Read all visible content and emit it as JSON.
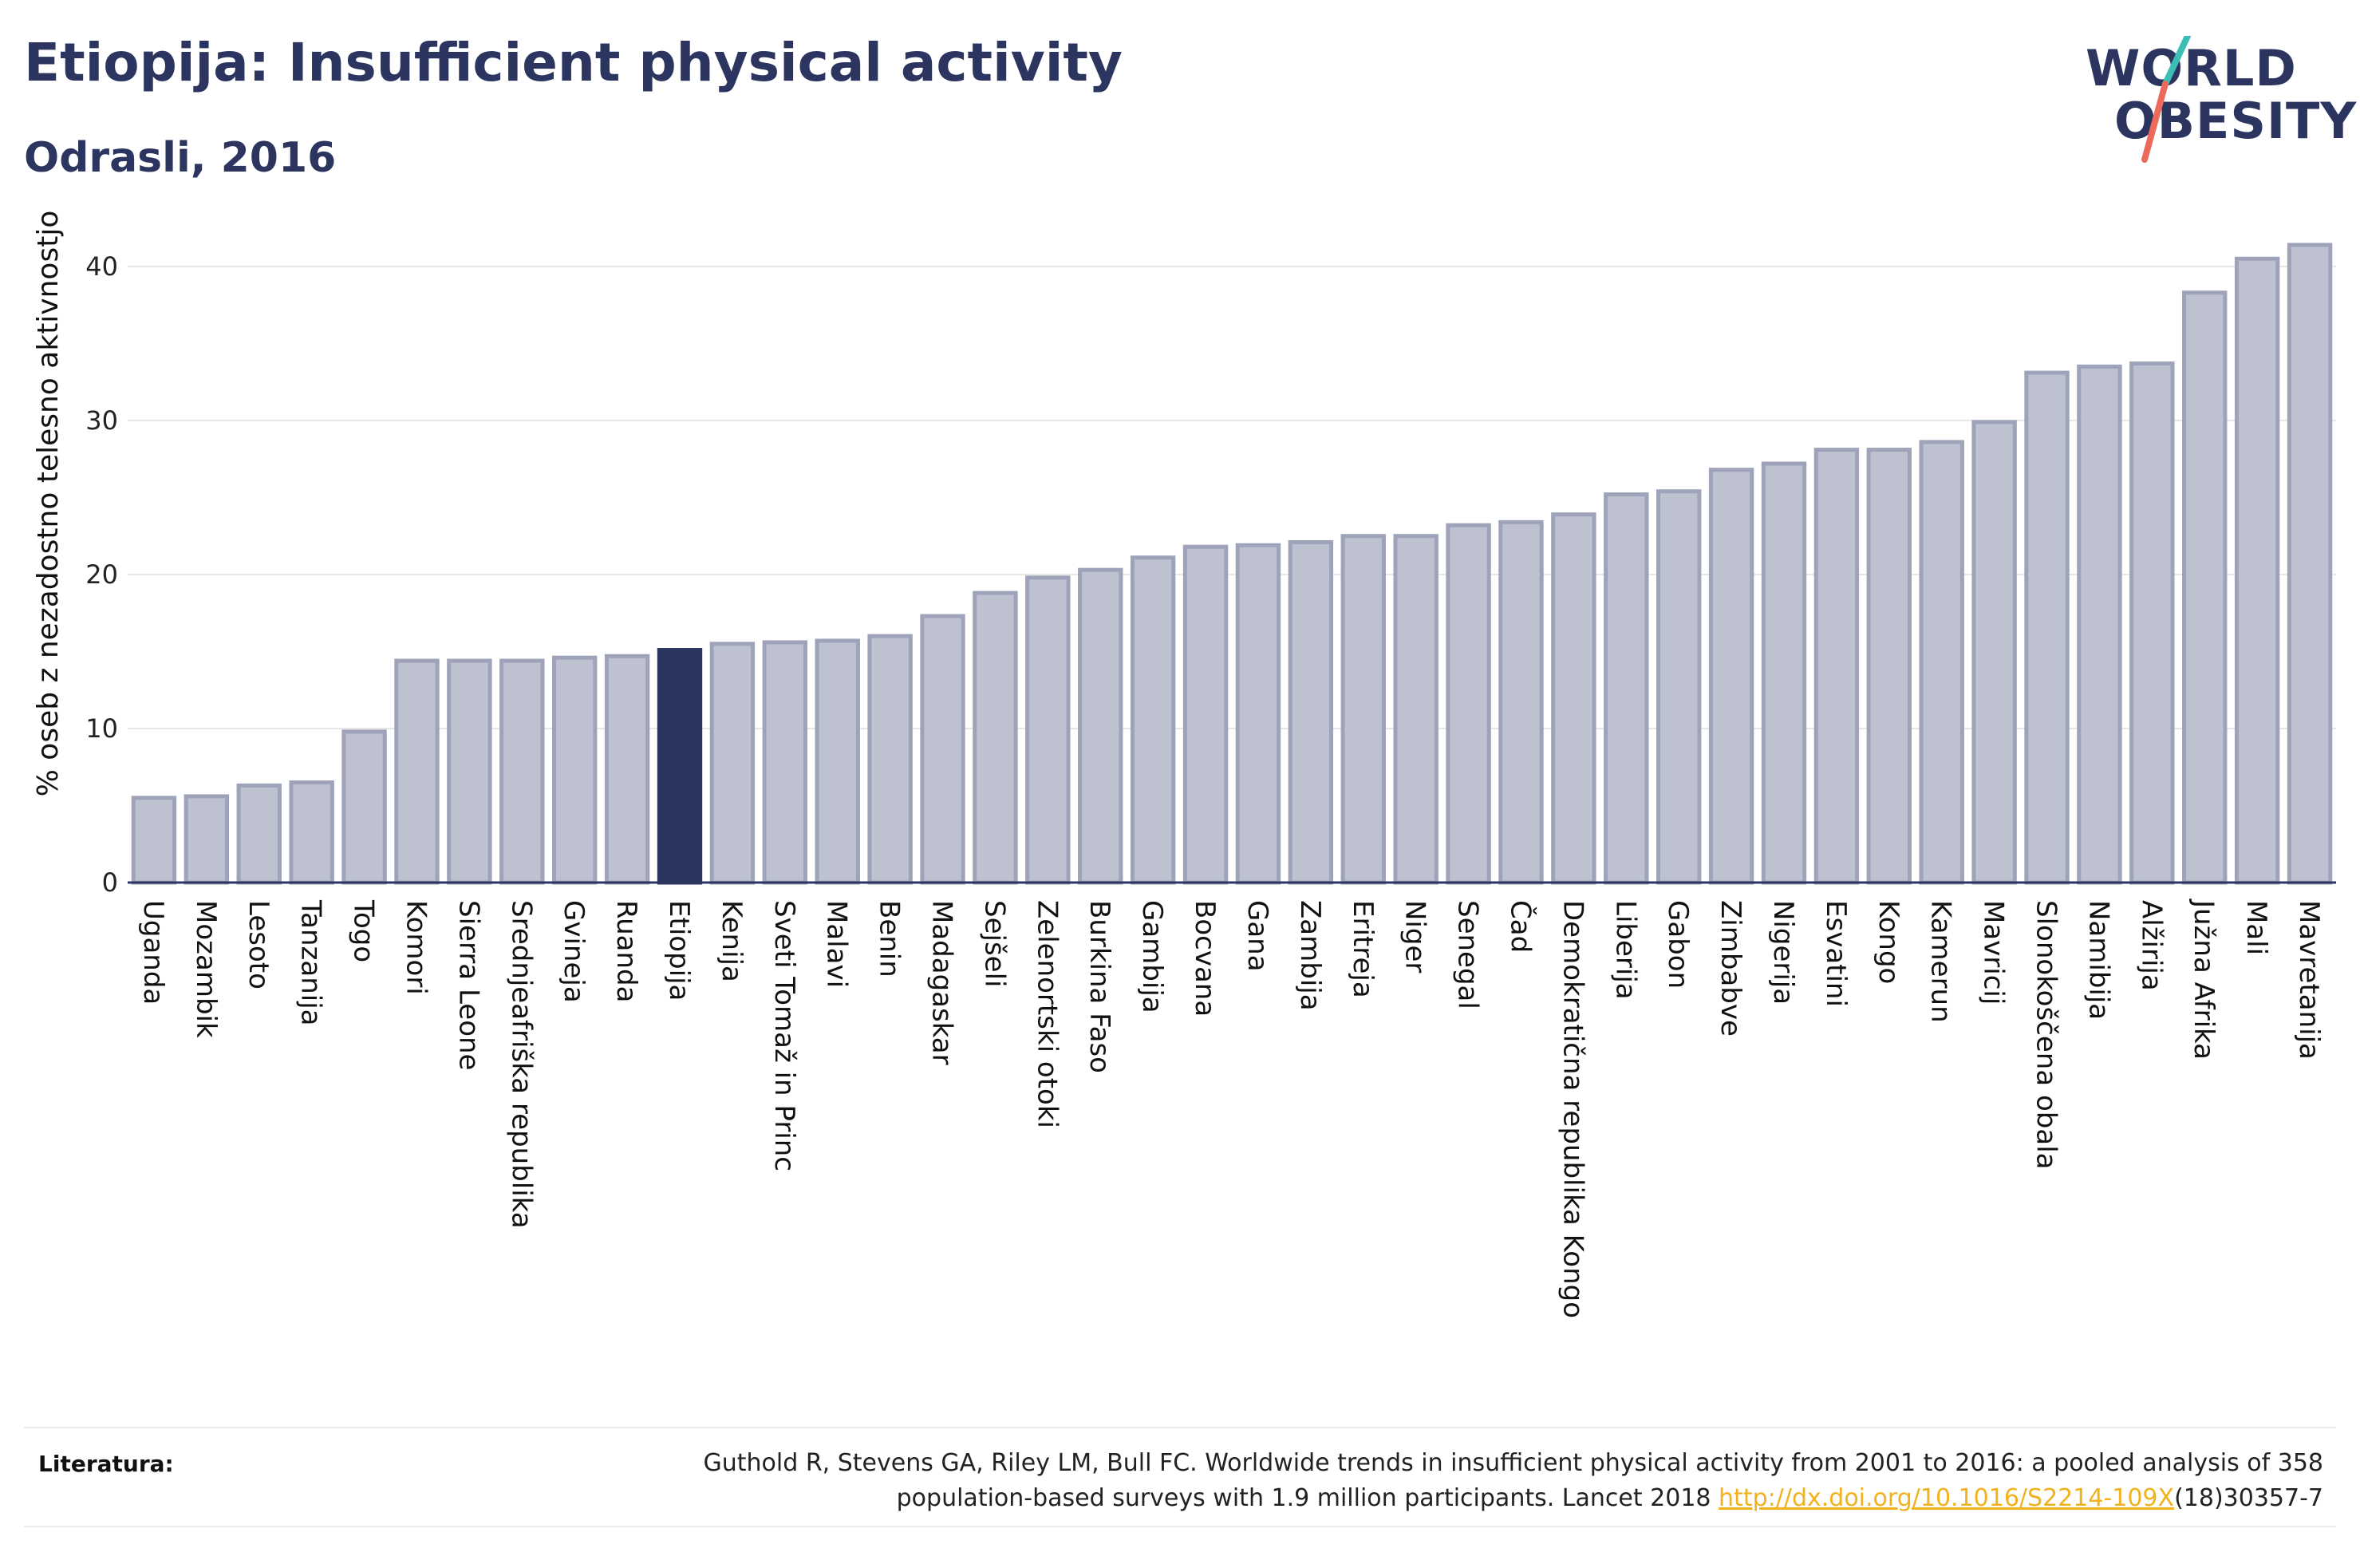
{
  "header": {
    "title": "Etiopija: Insufficient physical activity",
    "subtitle": "Odrasli, 2016"
  },
  "logo": {
    "text": "WORLD OBESITY",
    "line1": "WORLD",
    "line2": "OBESITY",
    "colors": {
      "text": "#2c3560",
      "slash_top": "#3bbfb5",
      "slash_bottom": "#ec6a5a"
    }
  },
  "colors": {
    "bar": "#bdc1d0",
    "bar_border": "#9ea3ba",
    "highlight": "#2c3560",
    "grid": "#e6e6e6",
    "axis": "#2c3560",
    "link": "#f2b21d"
  },
  "chart_data": {
    "type": "bar",
    "title": "",
    "xlabel": "",
    "ylabel": "% oseb z nezadostno telesno aktivnostjo",
    "ylim": [
      0,
      43
    ],
    "yticks": [
      0,
      10,
      20,
      30,
      40
    ],
    "grid": true,
    "highlight": "Etiopija",
    "categories": [
      "Uganda",
      "Mozambik",
      "Lesoto",
      "Tanzanija",
      "Togo",
      "Komori",
      "Sierra Leone",
      "Srednjeafriška republika",
      "Gvineja",
      "Ruanda",
      "Etiopija",
      "Kenija",
      "Sveti Tomaž in Princ",
      "Malavi",
      "Benin",
      "Madagaskar",
      "Sejšeli",
      "Zelenortski otoki",
      "Burkina Faso",
      "Gambija",
      "Bocvana",
      "Gana",
      "Zambija",
      "Eritreja",
      "Niger",
      "Senegal",
      "Čad",
      "Demokratična republika Kongo",
      "Liberija",
      "Gabon",
      "Zimbabve",
      "Nigerija",
      "Esvatini",
      "Kongo",
      "Kamerun",
      "Mavricij",
      "Slonokoščena obala",
      "Namibija",
      "Alžirija",
      "Južna Afrika",
      "Mali",
      "Mavretanija"
    ],
    "values": [
      5.5,
      5.6,
      6.3,
      6.5,
      9.8,
      14.4,
      14.4,
      14.4,
      14.6,
      14.7,
      15.1,
      15.5,
      15.6,
      15.7,
      16.0,
      17.3,
      18.8,
      19.8,
      20.3,
      21.1,
      21.8,
      21.9,
      22.1,
      22.5,
      22.5,
      23.2,
      23.4,
      23.9,
      25.2,
      25.4,
      26.8,
      27.2,
      28.1,
      28.1,
      28.6,
      29.9,
      33.1,
      33.5,
      33.7,
      38.3,
      40.5,
      41.4
    ]
  },
  "footer": {
    "label": "Literatura:",
    "line1": "Guthold R, Stevens GA, Riley LM, Bull FC. Worldwide trends in insufficient physical activity from 2001 to 2016: a pooled analysis of 358",
    "line2_pre": "population-based surveys with 1.9 million participants. Lancet 2018 ",
    "link": "http://dx.doi.org/10.1016/S2214-109X",
    "line2_post": "(18)30357-7"
  }
}
